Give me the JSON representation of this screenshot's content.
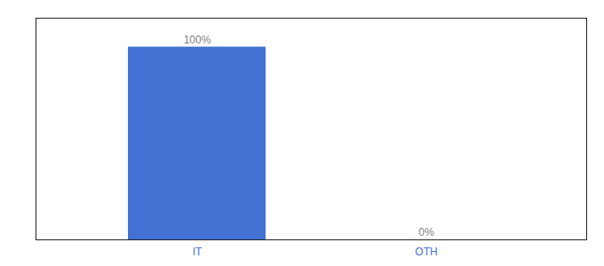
{
  "chart_data": {
    "type": "bar",
    "categories": [
      "IT",
      "OTH"
    ],
    "values": [
      100,
      0
    ],
    "value_labels": [
      "100%",
      "0%"
    ],
    "color": "#4472d4",
    "ylim": [
      0,
      115
    ],
    "data_labels": true,
    "tick_labels": "x"
  }
}
